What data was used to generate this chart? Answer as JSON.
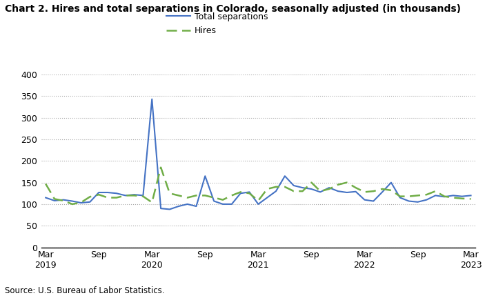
{
  "title": "Chart 2. Hires and total separations in Colorado, seasonally adjusted (in thousands)",
  "source": "Source: U.S. Bureau of Labor Statistics.",
  "legend_labels": [
    "Total separations",
    "Hires"
  ],
  "separations_color": "#4472C4",
  "hires_color": "#70AD47",
  "ylim": [
    0,
    400
  ],
  "yticks": [
    0,
    50,
    100,
    150,
    200,
    250,
    300,
    350,
    400
  ],
  "total_separations": [
    115,
    108,
    110,
    107,
    103,
    105,
    127,
    127,
    125,
    120,
    122,
    120,
    343,
    90,
    88,
    95,
    100,
    95,
    165,
    107,
    100,
    100,
    125,
    128,
    100,
    115,
    130,
    165,
    143,
    138,
    135,
    128,
    138,
    130,
    127,
    129,
    110,
    107,
    128,
    150,
    115,
    107,
    105,
    110,
    120,
    117,
    120,
    118,
    120
  ],
  "hires": [
    147,
    112,
    108,
    100,
    104,
    117,
    122,
    115,
    115,
    120,
    120,
    118,
    104,
    185,
    125,
    120,
    115,
    120,
    120,
    115,
    110,
    120,
    128,
    125,
    108,
    135,
    140,
    140,
    130,
    130,
    150,
    130,
    135,
    145,
    150,
    138,
    128,
    130,
    135,
    132,
    118,
    118,
    120,
    122,
    130,
    118,
    115,
    113,
    112
  ]
}
